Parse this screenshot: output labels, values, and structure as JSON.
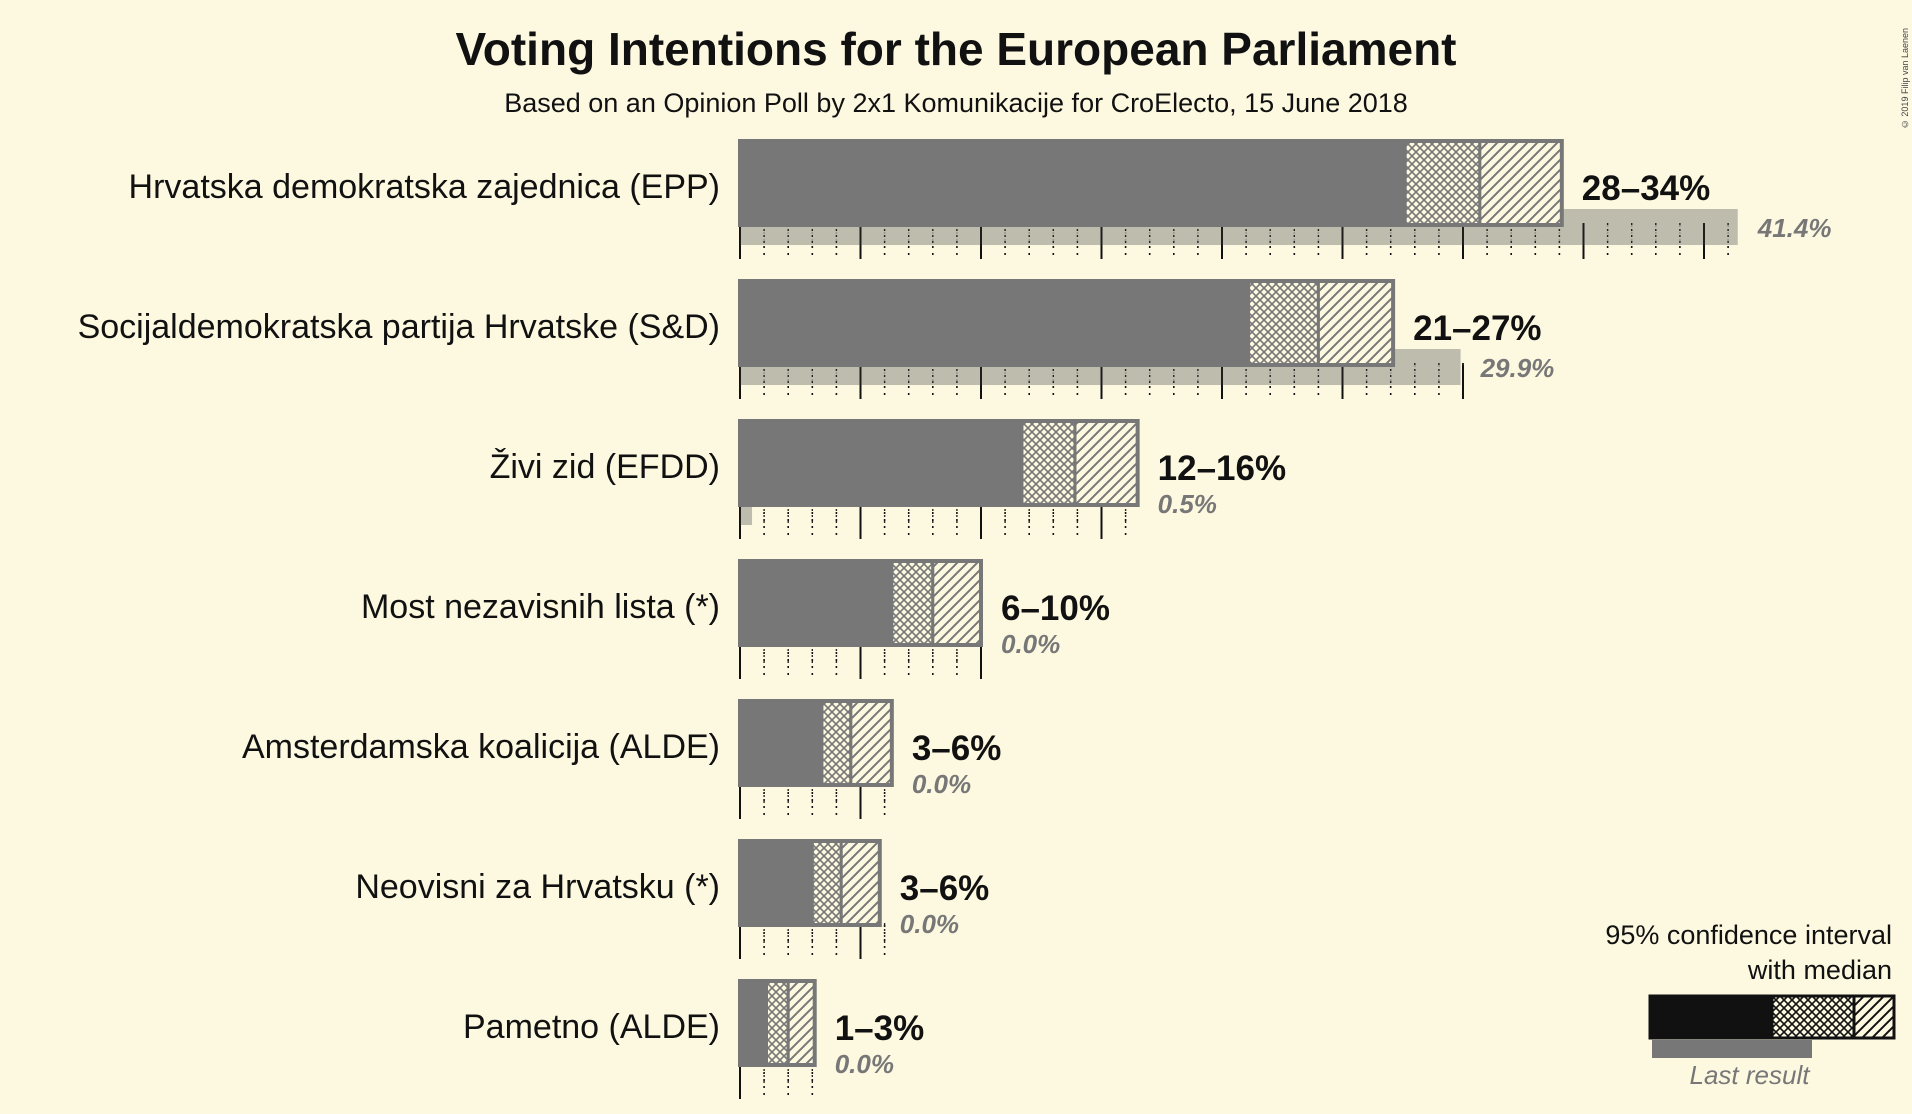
{
  "title": "Voting Intentions for the European Parliament",
  "subtitle": "Based on an Opinion Poll by 2x1 Komunikacije for CroElecto, 15 June 2018",
  "credit": "© 2019 Filip van Laenen",
  "legend": {
    "title_line1": "95% confidence interval",
    "title_line2": "with median",
    "last_result": "Last result"
  },
  "colors": {
    "background": "#fdf9e1",
    "bar": "#777777",
    "bar_outline": "#777777",
    "last_result": "#b3b1a3",
    "last_result_label": "#777777",
    "legend_bar": "#111111"
  },
  "chart_data": {
    "type": "bar",
    "orientation": "horizontal",
    "unit": "%",
    "xlim": [
      0,
      42
    ],
    "parties": [
      {
        "name": "Hrvatska demokratska zajednica (EPP)",
        "ci_low": 27.6,
        "median": 30.7,
        "ci_high": 34.1,
        "range_label": "28–34%",
        "last": 41.4,
        "last_label": "41.4%"
      },
      {
        "name": "Socijaldemokratska partija Hrvatske (S&D)",
        "ci_low": 21.1,
        "median": 24.0,
        "ci_high": 27.1,
        "range_label": "21–27%",
        "last": 29.9,
        "last_label": "29.9%"
      },
      {
        "name": "Živi zid (EFDD)",
        "ci_low": 11.7,
        "median": 13.9,
        "ci_high": 16.5,
        "range_label": "12–16%",
        "last": 0.5,
        "last_label": "0.5%"
      },
      {
        "name": "Most nezavisnih lista (*)",
        "ci_low": 6.3,
        "median": 8.0,
        "ci_high": 10.0,
        "range_label": "6–10%",
        "last": 0.0,
        "last_label": "0.0%"
      },
      {
        "name": "Amsterdamska koalicija (ALDE)",
        "ci_low": 3.4,
        "median": 4.6,
        "ci_high": 6.3,
        "range_label": "3–6%",
        "last": 0.0,
        "last_label": "0.0%"
      },
      {
        "name": "Neovisni za Hrvatsku (*)",
        "ci_low": 3.0,
        "median": 4.2,
        "ci_high": 5.8,
        "range_label": "3–6%",
        "last": 0.0,
        "last_label": "0.0%"
      },
      {
        "name": "Pametno (ALDE)",
        "ci_low": 1.1,
        "median": 2.0,
        "ci_high": 3.1,
        "range_label": "1–3%",
        "last": 0.0,
        "last_label": "0.0%"
      }
    ],
    "grid": true,
    "legend_position": "bottom-right"
  }
}
